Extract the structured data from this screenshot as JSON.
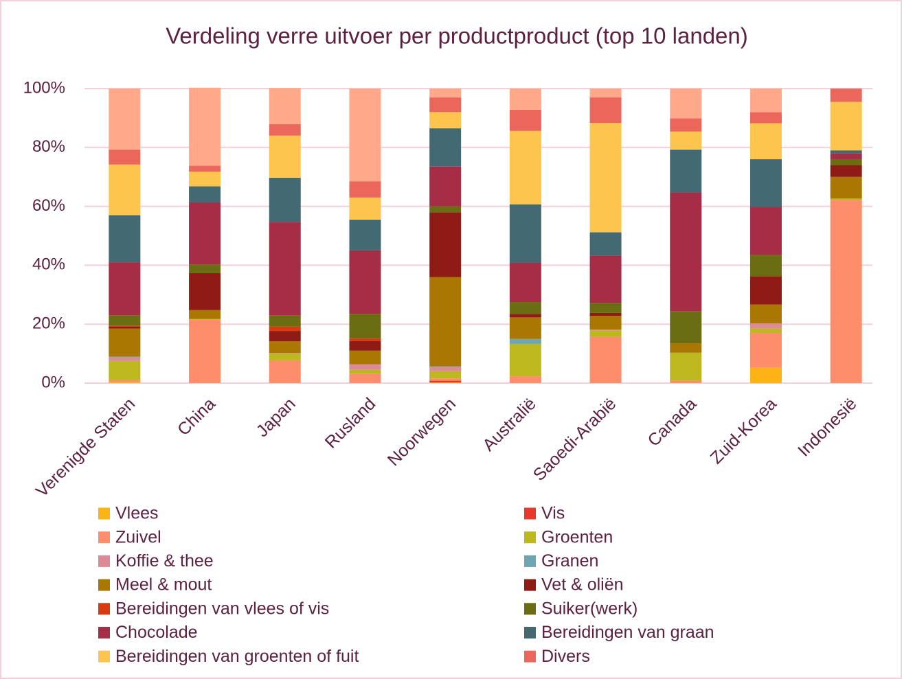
{
  "chart_data": {
    "type": "stacked_bar",
    "title": "Verdeling verre uitvoer per productproduct (top 10 landen)",
    "categories": [
      "Verenigde Staten",
      "China",
      "Japan",
      "Rusland",
      "Noorwegen",
      "Australië",
      "Saoedi-Arabië",
      "Canada",
      "Zuid-Korea",
      "Indonesië"
    ],
    "ylim": [
      0,
      100
    ],
    "yticks": [
      {
        "value": 0,
        "label": "0%"
      },
      {
        "value": 20,
        "label": "20%"
      },
      {
        "value": 40,
        "label": "40%"
      },
      {
        "value": 60,
        "label": "60%"
      },
      {
        "value": 80,
        "label": "80%"
      },
      {
        "value": 100,
        "label": "100%"
      }
    ],
    "grid": true,
    "series": [
      {
        "name": "Vlees",
        "color": "#fbb315",
        "values": [
          0.3,
          0,
          0,
          0,
          0.2,
          0,
          0,
          0,
          5.2,
          0
        ]
      },
      {
        "name": "Vis",
        "color": "#e6392c",
        "values": [
          0,
          0,
          0,
          0,
          0.6,
          0,
          0,
          0,
          0,
          0
        ]
      },
      {
        "name": "Zuivel",
        "color": "#fe8d6b",
        "values": [
          0.7,
          21.5,
          7.7,
          3.2,
          0.8,
          2.3,
          15.7,
          0.8,
          11.8,
          62.2
        ]
      },
      {
        "name": "Groenten",
        "color": "#bdb81e",
        "values": [
          6.5,
          0.3,
          2.3,
          1.3,
          2.4,
          11,
          2.2,
          9.5,
          1.5,
          0.5
        ]
      },
      {
        "name": "Koffie & thee",
        "color": "#dc8a96",
        "values": [
          1.2,
          0,
          0.2,
          1.9,
          1.5,
          0,
          0.3,
          0,
          1.8,
          0
        ]
      },
      {
        "name": "Granen",
        "color": "#6fa5b1",
        "values": [
          0.3,
          0,
          0,
          0,
          0.2,
          1.7,
          0,
          0,
          0,
          0
        ]
      },
      {
        "name": "Meel & mout",
        "color": "#a97702",
        "values": [
          9.5,
          3,
          4,
          4.6,
          30.3,
          7.3,
          4.6,
          3.2,
          6.4,
          7.3
        ]
      },
      {
        "name": "Vet & oliën",
        "color": "#8f1c14",
        "values": [
          0.7,
          12.5,
          3.5,
          3.3,
          22,
          1.2,
          1,
          0,
          9.6,
          4
        ]
      },
      {
        "name": "Bereidingen van vlees of vis",
        "color": "#d93a10",
        "values": [
          0.3,
          0,
          1.5,
          0.9,
          0,
          0,
          0,
          0,
          0,
          0
        ]
      },
      {
        "name": "Suiker(werk)",
        "color": "#6b6d12",
        "values": [
          3.5,
          3,
          3.7,
          8.3,
          2,
          4,
          3.4,
          10.8,
          7.2,
          2
        ]
      },
      {
        "name": "Chocolade",
        "color": "#a52d46",
        "values": [
          18,
          21,
          31.8,
          21.5,
          13.5,
          13.3,
          16.1,
          40.4,
          16.3,
          2
        ]
      },
      {
        "name": "Bereidingen van graan",
        "color": "#436a72",
        "values": [
          16,
          5.5,
          15,
          10.5,
          13,
          19.9,
          7.9,
          14.6,
          16.2,
          1
        ]
      },
      {
        "name": "Bereidingen van groenten of fuit",
        "color": "#fdc54e",
        "values": [
          17.2,
          5,
          14.3,
          7.5,
          5.5,
          24.9,
          37.1,
          6.1,
          12.2,
          16.5
        ]
      },
      {
        "name": "Divers",
        "color": "#ec675b",
        "values": [
          5.1,
          2,
          3.9,
          5.5,
          5,
          7.2,
          8.7,
          4.5,
          3.8,
          4.5
        ]
      },
      {
        "name": null,
        "color": "#ffa88a",
        "values": [
          20.7,
          26.5,
          12.3,
          31.5,
          3,
          7.2,
          3,
          10.1,
          8,
          0
        ]
      }
    ]
  }
}
